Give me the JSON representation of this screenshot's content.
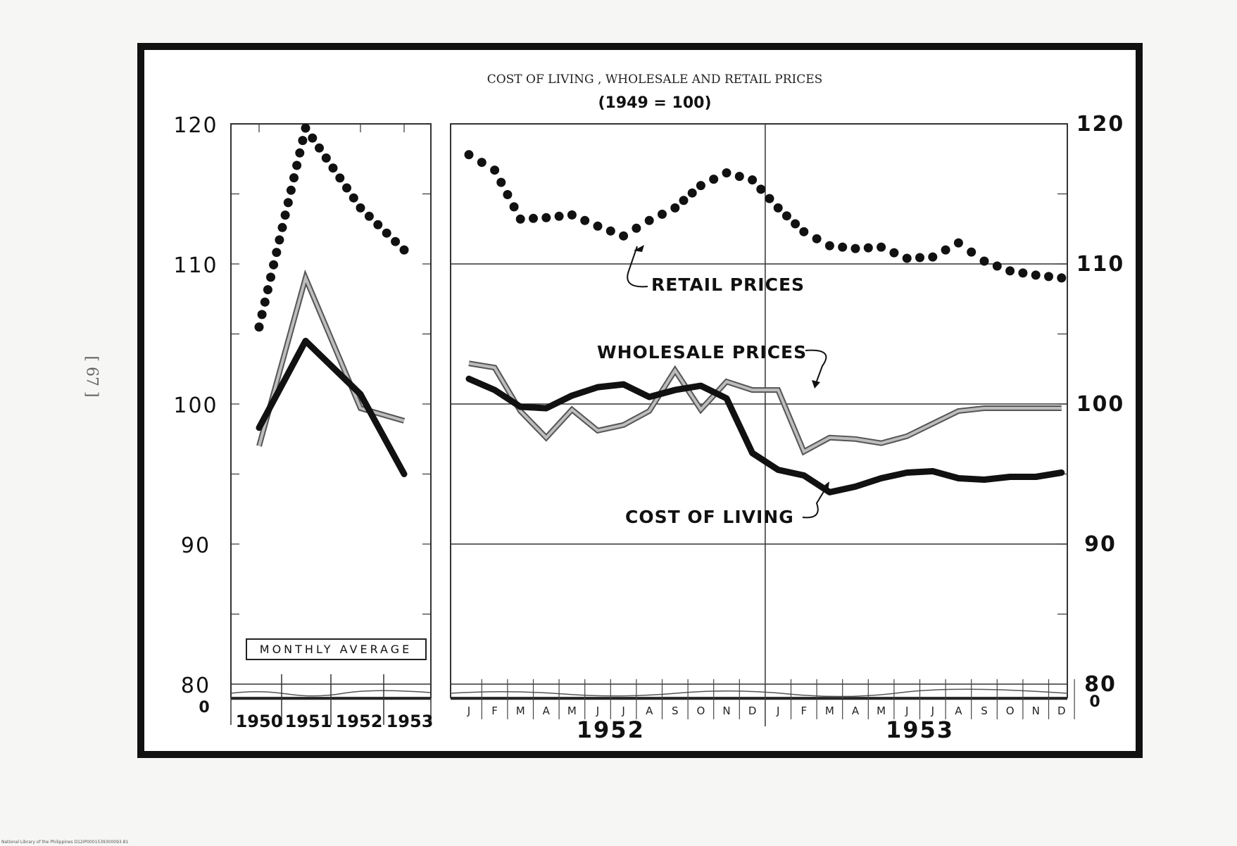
{
  "page_number": "[ 67 ]",
  "footer": "National Library of the Philippines   D12IP0001539300093.81",
  "chart_data": {
    "type": "line",
    "title": "COST OF LIVING , WHOLESALE AND RETAIL PRICES",
    "subtitle": "(1949 = 100)",
    "ylim": [
      80,
      120
    ],
    "y_ticks": [
      "120",
      "110",
      "100",
      "90",
      "80"
    ],
    "y_zero_label": "0",
    "annual": {
      "box_label": "MONTHLY AVERAGE",
      "categories": [
        "1950",
        "1951",
        "1952",
        "1953"
      ],
      "series": [
        {
          "name": "RETAIL PRICES",
          "style": "dotted",
          "values": [
            105.5,
            119.7,
            114.0,
            111.0
          ]
        },
        {
          "name": "WHOLESALE PRICES",
          "style": "double",
          "values": [
            97.0,
            109.0,
            99.7,
            98.8
          ]
        },
        {
          "name": "COST OF LIVING",
          "style": "solid",
          "values": [
            98.3,
            104.5,
            100.7,
            95.0
          ]
        }
      ]
    },
    "monthly": {
      "months": [
        "J",
        "F",
        "M",
        "A",
        "M",
        "J",
        "J",
        "A",
        "S",
        "O",
        "N",
        "D",
        "J",
        "F",
        "M",
        "A",
        "M",
        "J",
        "J",
        "A",
        "S",
        "O",
        "N",
        "D"
      ],
      "years": [
        "1952",
        "1953"
      ],
      "series": [
        {
          "name": "RETAIL PRICES",
          "style": "dotted",
          "values": [
            117.8,
            116.7,
            113.2,
            113.3,
            113.5,
            112.7,
            112.0,
            113.1,
            114.0,
            115.6,
            116.5,
            116.0,
            114.0,
            112.3,
            111.3,
            111.1,
            111.2,
            110.4,
            110.5,
            111.5,
            110.2,
            109.5,
            109.2,
            109.0
          ]
        },
        {
          "name": "WHOLESALE PRICES",
          "style": "double",
          "values": [
            102.9,
            102.6,
            99.5,
            97.6,
            99.6,
            98.1,
            98.5,
            99.5,
            102.4,
            99.6,
            101.6,
            101.0,
            101.0,
            96.6,
            97.6,
            97.5,
            97.2,
            97.7,
            98.6,
            99.5,
            99.7,
            99.7,
            99.7,
            99.7
          ]
        },
        {
          "name": "COST OF LIVING",
          "style": "solid",
          "values": [
            101.8,
            101.0,
            99.8,
            99.7,
            100.6,
            101.2,
            101.4,
            100.5,
            101.0,
            101.3,
            100.4,
            96.5,
            95.3,
            94.9,
            93.7,
            94.1,
            94.7,
            95.1,
            95.2,
            94.7,
            94.6,
            94.8,
            94.8,
            95.1
          ]
        }
      ],
      "annotations": {
        "retail": "RETAIL PRICES",
        "wholesale": "WHOLESALE PRICES",
        "cost": "COST OF LIVING"
      }
    },
    "colors": {
      "ink": "#111111",
      "paper": "#ffffff",
      "grid": "#333333",
      "double": "#bdbdbd"
    }
  }
}
